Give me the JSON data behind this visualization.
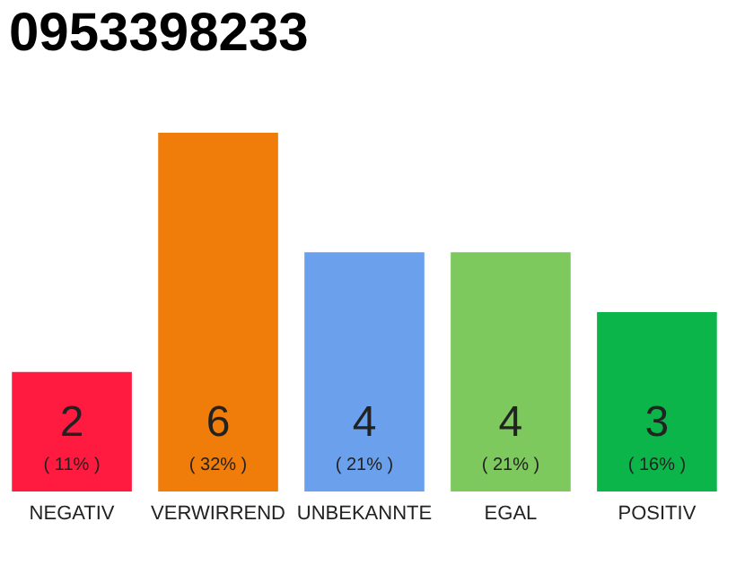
{
  "chart_data": {
    "type": "bar",
    "title": "0953398233",
    "categories": [
      "NEGATIV",
      "VERWIRREND",
      "UNBEKANNTE",
      "EGAL",
      "POSITIV"
    ],
    "values": [
      2,
      6,
      4,
      4,
      3
    ],
    "colors": [
      "#ff1a40",
      "#f07d0a",
      "#6aa0ec",
      "#7dc95e",
      "#0bb54a"
    ],
    "data_labels": true,
    "annotations": [
      "( 11% )",
      "( 32% )",
      "( 21% )",
      "( 21% )",
      "( 16% )"
    ],
    "grid": false,
    "legend": false
  }
}
